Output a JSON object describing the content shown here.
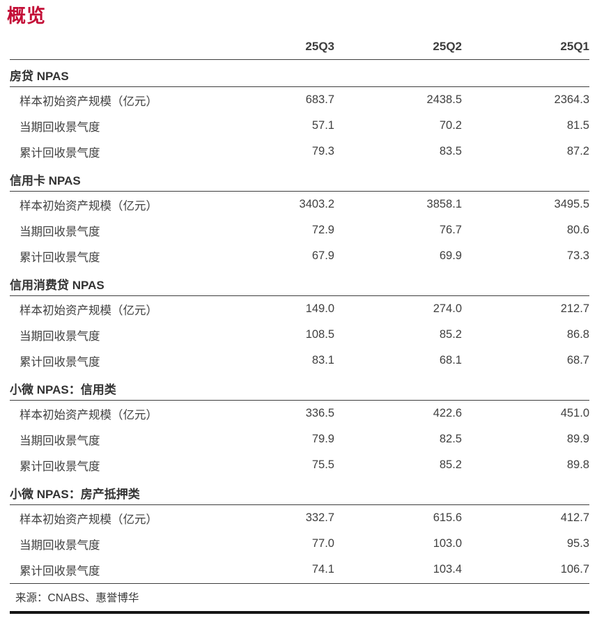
{
  "page": {
    "title": "概览"
  },
  "colors": {
    "title": "#c30f37",
    "text": "#404040",
    "rule": "#3d3d3d",
    "bottom_rule": "#151515"
  },
  "table": {
    "columns": [
      "25Q3",
      "25Q2",
      "25Q1"
    ],
    "sections": [
      {
        "name": "房贷 NPAS",
        "rows": [
          {
            "label": "样本初始资产规模（亿元）",
            "values": [
              "683.7",
              "2438.5",
              "2364.3"
            ]
          },
          {
            "label": "当期回收景气度",
            "values": [
              "57.1",
              "70.2",
              "81.5"
            ]
          },
          {
            "label": "累计回收景气度",
            "values": [
              "79.3",
              "83.5",
              "87.2"
            ]
          }
        ]
      },
      {
        "name": "信用卡 NPAS",
        "rows": [
          {
            "label": "样本初始资产规模（亿元）",
            "values": [
              "3403.2",
              "3858.1",
              "3495.5"
            ]
          },
          {
            "label": "当期回收景气度",
            "values": [
              "72.9",
              "76.7",
              "80.6"
            ]
          },
          {
            "label": "累计回收景气度",
            "values": [
              "67.9",
              "69.9",
              "73.3"
            ]
          }
        ]
      },
      {
        "name": "信用消费贷 NPAS",
        "rows": [
          {
            "label": "样本初始资产规模（亿元）",
            "values": [
              "149.0",
              "274.0",
              "212.7"
            ]
          },
          {
            "label": "当期回收景气度",
            "values": [
              "108.5",
              "85.2",
              "86.8"
            ]
          },
          {
            "label": "累计回收景气度",
            "values": [
              "83.1",
              "68.1",
              "68.7"
            ]
          }
        ]
      },
      {
        "name": "小微 NPAS：信用类",
        "rows": [
          {
            "label": "样本初始资产规模（亿元）",
            "values": [
              "336.5",
              "422.6",
              "451.0"
            ]
          },
          {
            "label": "当期回收景气度",
            "values": [
              "79.9",
              "82.5",
              "89.9"
            ]
          },
          {
            "label": "累计回收景气度",
            "values": [
              "75.5",
              "85.2",
              "89.8"
            ]
          }
        ]
      },
      {
        "name": "小微 NPAS：房产抵押类",
        "rows": [
          {
            "label": "样本初始资产规模（亿元）",
            "values": [
              "332.7",
              "615.6",
              "412.7"
            ]
          },
          {
            "label": "当期回收景气度",
            "values": [
              "77.0",
              "103.0",
              "95.3"
            ]
          },
          {
            "label": "累计回收景气度",
            "values": [
              "74.1",
              "103.4",
              "106.7"
            ]
          }
        ]
      }
    ]
  },
  "footer": {
    "source": "来源：CNABS、惠誉博华"
  }
}
